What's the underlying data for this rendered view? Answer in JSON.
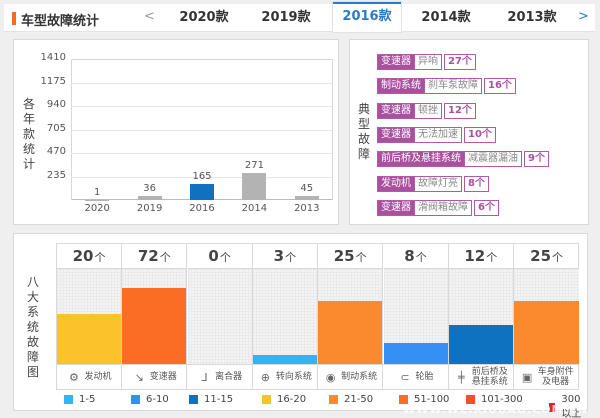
{
  "header": {
    "title": "车型故障统计",
    "prev_label": "<",
    "next_label": ">",
    "tabs": [
      {
        "label": "2020款",
        "active": false
      },
      {
        "label": "2019款",
        "active": false
      },
      {
        "label": "2016款",
        "active": true
      },
      {
        "label": "2014款",
        "active": false
      },
      {
        "label": "2013款",
        "active": false
      }
    ]
  },
  "year_panel": {
    "vertical_label": "各年款统计"
  },
  "chart_data": [
    {
      "type": "bar",
      "title": "各年款统计",
      "categories": [
        "2020",
        "2019",
        "2016",
        "2014",
        "2013"
      ],
      "values": [
        1,
        36,
        165,
        271,
        45
      ],
      "highlight": "2016",
      "ylim": [
        0,
        1410
      ],
      "yticks": [
        235,
        470,
        705,
        940,
        1175,
        1410
      ],
      "grid": true,
      "colors": {
        "default": "#b3b3b3",
        "highlight": "#0f72c1"
      }
    },
    {
      "type": "bar",
      "title": "八大系统故障图",
      "categories": [
        "发动机",
        "变速器",
        "离合器",
        "转向系统",
        "制动系统",
        "轮胎",
        "前后桥及悬挂系统",
        "车身附件及电器"
      ],
      "values": [
        20,
        72,
        0,
        3,
        25,
        8,
        12,
        25
      ],
      "unit": "个"
    }
  ],
  "typical_panel": {
    "vertical_label": "典型故障",
    "faults": [
      {
        "system": "变速器",
        "desc": "异响",
        "count": "27个"
      },
      {
        "system": "制动系统",
        "desc": "刹车泵故障",
        "count": "16个"
      },
      {
        "system": "变速器",
        "desc": "顿挫",
        "count": "12个"
      },
      {
        "system": "变速器",
        "desc": "无法加速",
        "count": "10个"
      },
      {
        "system": "前后桥及悬挂系统",
        "desc": "减震器漏油",
        "count": "9个"
      },
      {
        "system": "发动机",
        "desc": "故障灯亮",
        "count": "8个"
      },
      {
        "system": "变速器",
        "desc": "滑阀箱故障",
        "count": "6个"
      }
    ]
  },
  "systems_panel": {
    "vertical_label": "八大系统故障图",
    "unit": "个",
    "systems": [
      {
        "name": "发动机",
        "count": "20",
        "icon": "engine-icon",
        "color": "#fbc22a"
      },
      {
        "name": "变速器",
        "count": "72",
        "icon": "gear-shift-icon",
        "color": "#fb6d24"
      },
      {
        "name": "离合器",
        "count": "0",
        "icon": "clutch-pedal-icon",
        "color": ""
      },
      {
        "name": "转向系统",
        "count": "3",
        "icon": "steering-wheel-icon",
        "color": "#33b2f5"
      },
      {
        "name": "制动系统",
        "count": "25",
        "icon": "brake-disc-icon",
        "color": "#fb892d"
      },
      {
        "name": "轮胎",
        "count": "8",
        "icon": "tire-icon",
        "color": "#3590f3"
      },
      {
        "name": "前后桥及悬挂系统",
        "name_line1": "前后桥及",
        "name_line2": "悬挂系统",
        "count": "12",
        "icon": "axle-icon",
        "color": "#0f72c1"
      },
      {
        "name": "车身附件及电器",
        "name_line1": "车身附件",
        "name_line2": "及电器",
        "count": "25",
        "icon": "battery-icon",
        "color": "#fb892d"
      }
    ],
    "legend": [
      {
        "label": "1-5",
        "color": "#33b2f5"
      },
      {
        "label": "6-10",
        "color": "#3590f3"
      },
      {
        "label": "11-15",
        "color": "#0f72c1"
      },
      {
        "label": "16-20",
        "color": "#fbc22a"
      },
      {
        "label": "21-50",
        "color": "#fb892d"
      },
      {
        "label": "51-100",
        "color": "#fb6d24"
      },
      {
        "label": "101-300",
        "color": "#f5511b"
      },
      {
        "label": "300以上",
        "color": "#ee1c25"
      }
    ]
  },
  "watermark": "WWW.WEIXIUBAO.COM.CN"
}
